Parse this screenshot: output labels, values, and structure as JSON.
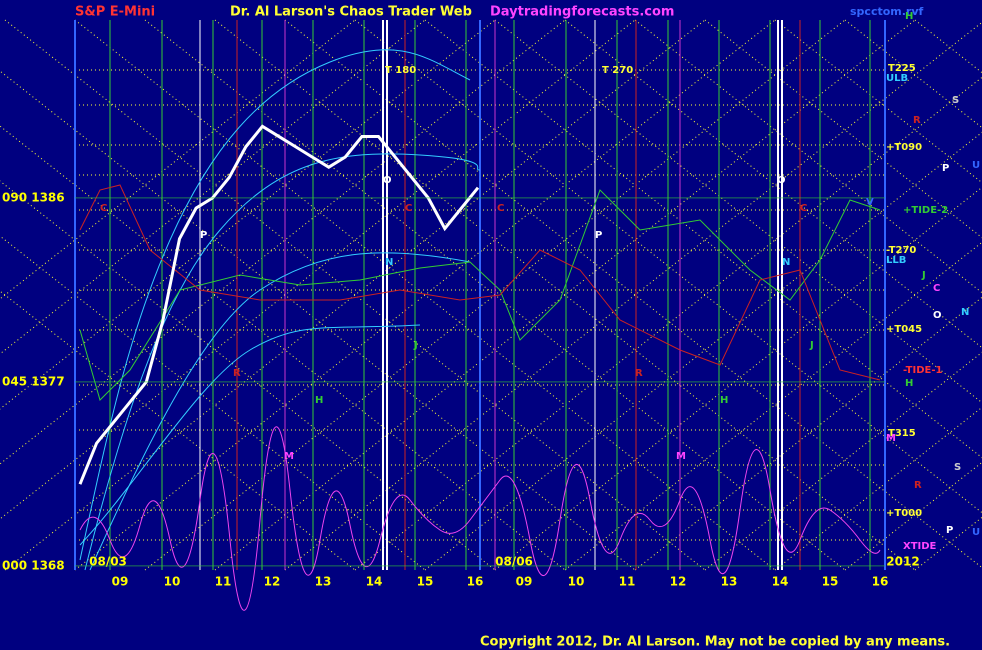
{
  "chart_data": {
    "type": "line",
    "header": {
      "symbol": "S&P E-Mini",
      "title": "Dr. Al Larson's Chaos Trader Web",
      "site": "Daytradingforecasts.com",
      "file": "spcctom.rvf"
    },
    "copyright": "Copyright 2012, Dr. Al Larson. May not be copied by any means.",
    "ylim": [
      1367.8,
      1394.7
    ],
    "yticks": [
      {
        "value": 1386,
        "label": "090  1386"
      },
      {
        "value": 1377,
        "label": "045  1377"
      },
      {
        "value": 1368,
        "label": "000  1368"
      }
    ],
    "dates": [
      "08/03",
      "08/06",
      "2012"
    ],
    "hours": [
      "09",
      "10",
      "11",
      "12",
      "13",
      "14",
      "15",
      "16",
      "09",
      "10",
      "11",
      "12",
      "13",
      "14",
      "15",
      "16"
    ],
    "right_labels": [
      "H",
      "T225",
      "ULB",
      "S",
      "R",
      "+T090",
      "P",
      "U",
      "+TIDE-2",
      "V",
      "-T270",
      "LLB",
      "J",
      "C",
      "O",
      "N",
      "+T045",
      "-TIDE-1",
      "H",
      "T315",
      "M",
      "S",
      "R",
      "+T000",
      "XTIDE",
      "P",
      "U"
    ],
    "chart_labels": [
      "T  180",
      "T  270",
      "O",
      "O",
      "P",
      "P",
      "N",
      "N",
      "C",
      "C",
      "C",
      "C",
      "R",
      "R",
      "M",
      "M",
      "H",
      "H",
      "J",
      "J"
    ],
    "price": {
      "name": "S&P E-Mini",
      "color": "#ffffff",
      "values": [
        1372,
        1374,
        1375,
        1376,
        1377,
        1380,
        1384,
        1385.5,
        1386,
        1387,
        1388.5,
        1389.5,
        1389,
        1388.5,
        1388,
        1387.5,
        1388,
        1389,
        1389,
        1388,
        1387,
        1386,
        1384.5,
        1385.5,
        1386.5
      ]
    }
  }
}
